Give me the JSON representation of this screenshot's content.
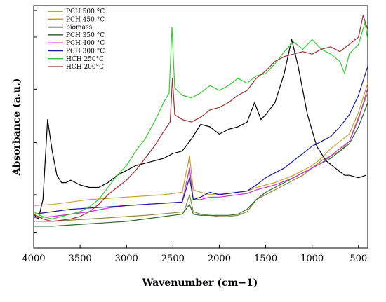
{
  "chart_data": {
    "type": "line",
    "title": "",
    "xlabel": "Wavenumber (cm−1)",
    "ylabel": "Absorbance (a.u.)",
    "xlim": [
      4000,
      400
    ],
    "ylim": [
      0,
      1
    ],
    "x_reversed": true,
    "x_ticks": [
      4000,
      3500,
      3000,
      2500,
      2000,
      1500,
      1000,
      500
    ],
    "y_tick_labels_shown": false,
    "legend_position": "top-left",
    "series": [
      {
        "name": "PCH 500 °C",
        "color": "#8a8a3a",
        "points": [
          [
            4000,
            0.11
          ],
          [
            3800,
            0.11
          ],
          [
            3600,
            0.115
          ],
          [
            3400,
            0.12
          ],
          [
            3200,
            0.125
          ],
          [
            3000,
            0.13
          ],
          [
            2800,
            0.135
          ],
          [
            2500,
            0.145
          ],
          [
            2380,
            0.15
          ],
          [
            2320,
            0.22
          ],
          [
            2280,
            0.15
          ],
          [
            2200,
            0.14
          ],
          [
            2100,
            0.135
          ],
          [
            2000,
            0.13
          ],
          [
            1900,
            0.13
          ],
          [
            1800,
            0.135
          ],
          [
            1700,
            0.15
          ],
          [
            1600,
            0.2
          ],
          [
            1500,
            0.22
          ],
          [
            1400,
            0.24
          ],
          [
            1300,
            0.26
          ],
          [
            1200,
            0.28
          ],
          [
            1100,
            0.3
          ],
          [
            1000,
            0.33
          ],
          [
            900,
            0.36
          ],
          [
            800,
            0.38
          ],
          [
            700,
            0.4
          ],
          [
            600,
            0.44
          ],
          [
            500,
            0.54
          ],
          [
            400,
            0.64
          ]
        ]
      },
      {
        "name": "PCH 450 °C",
        "color": "#c8a030",
        "points": [
          [
            4000,
            0.175
          ],
          [
            3800,
            0.18
          ],
          [
            3600,
            0.19
          ],
          [
            3400,
            0.2
          ],
          [
            3200,
            0.205
          ],
          [
            3000,
            0.21
          ],
          [
            2800,
            0.215
          ],
          [
            2600,
            0.22
          ],
          [
            2400,
            0.23
          ],
          [
            2320,
            0.38
          ],
          [
            2280,
            0.24
          ],
          [
            2200,
            0.23
          ],
          [
            2100,
            0.22
          ],
          [
            2000,
            0.225
          ],
          [
            1900,
            0.225
          ],
          [
            1800,
            0.23
          ],
          [
            1700,
            0.235
          ],
          [
            1600,
            0.25
          ],
          [
            1400,
            0.27
          ],
          [
            1200,
            0.3
          ],
          [
            1000,
            0.34
          ],
          [
            900,
            0.37
          ],
          [
            800,
            0.41
          ],
          [
            700,
            0.44
          ],
          [
            600,
            0.47
          ],
          [
            500,
            0.56
          ],
          [
            400,
            0.68
          ]
        ]
      },
      {
        "name": "biomass",
        "color": "#000000",
        "points": [
          [
            4000,
            0.14
          ],
          [
            3950,
            0.12
          ],
          [
            3900,
            0.2
          ],
          [
            3850,
            0.53
          ],
          [
            3800,
            0.4
          ],
          [
            3750,
            0.3
          ],
          [
            3700,
            0.27
          ],
          [
            3650,
            0.27
          ],
          [
            3600,
            0.28
          ],
          [
            3500,
            0.26
          ],
          [
            3400,
            0.25
          ],
          [
            3300,
            0.25
          ],
          [
            3200,
            0.27
          ],
          [
            3100,
            0.3
          ],
          [
            3000,
            0.32
          ],
          [
            2900,
            0.34
          ],
          [
            2800,
            0.35
          ],
          [
            2700,
            0.36
          ],
          [
            2600,
            0.37
          ],
          [
            2500,
            0.39
          ],
          [
            2400,
            0.4
          ],
          [
            2300,
            0.45
          ],
          [
            2200,
            0.51
          ],
          [
            2100,
            0.5
          ],
          [
            2000,
            0.47
          ],
          [
            1900,
            0.49
          ],
          [
            1800,
            0.5
          ],
          [
            1700,
            0.52
          ],
          [
            1620,
            0.6
          ],
          [
            1550,
            0.53
          ],
          [
            1500,
            0.55
          ],
          [
            1400,
            0.6
          ],
          [
            1300,
            0.72
          ],
          [
            1220,
            0.86
          ],
          [
            1150,
            0.75
          ],
          [
            1050,
            0.55
          ],
          [
            950,
            0.42
          ],
          [
            850,
            0.36
          ],
          [
            750,
            0.33
          ],
          [
            650,
            0.3
          ],
          [
            600,
            0.3
          ],
          [
            500,
            0.29
          ],
          [
            420,
            0.3
          ]
        ]
      },
      {
        "name": "PCH 350 °C",
        "color": "#2a6a2a",
        "points": [
          [
            4000,
            0.09
          ],
          [
            3800,
            0.09
          ],
          [
            3600,
            0.095
          ],
          [
            3400,
            0.1
          ],
          [
            3200,
            0.105
          ],
          [
            3000,
            0.11
          ],
          [
            2800,
            0.12
          ],
          [
            2600,
            0.13
          ],
          [
            2400,
            0.14
          ],
          [
            2320,
            0.18
          ],
          [
            2280,
            0.14
          ],
          [
            2200,
            0.135
          ],
          [
            2100,
            0.135
          ],
          [
            2000,
            0.135
          ],
          [
            1900,
            0.135
          ],
          [
            1800,
            0.14
          ],
          [
            1700,
            0.16
          ],
          [
            1600,
            0.2
          ],
          [
            1500,
            0.23
          ],
          [
            1400,
            0.25
          ],
          [
            1300,
            0.27
          ],
          [
            1200,
            0.29
          ],
          [
            1100,
            0.31
          ],
          [
            1000,
            0.33
          ],
          [
            900,
            0.35
          ],
          [
            800,
            0.37
          ],
          [
            700,
            0.4
          ],
          [
            600,
            0.43
          ],
          [
            500,
            0.5
          ],
          [
            400,
            0.6
          ]
        ]
      },
      {
        "name": "PCH 400 °C",
        "color": "#cc33cc",
        "points": [
          [
            4000,
            0.125
          ],
          [
            3800,
            0.13
          ],
          [
            3600,
            0.14
          ],
          [
            3400,
            0.15
          ],
          [
            3200,
            0.165
          ],
          [
            3000,
            0.175
          ],
          [
            2800,
            0.18
          ],
          [
            2600,
            0.185
          ],
          [
            2400,
            0.19
          ],
          [
            2320,
            0.33
          ],
          [
            2280,
            0.2
          ],
          [
            2200,
            0.2
          ],
          [
            2100,
            0.21
          ],
          [
            2000,
            0.21
          ],
          [
            1900,
            0.215
          ],
          [
            1800,
            0.22
          ],
          [
            1700,
            0.225
          ],
          [
            1600,
            0.24
          ],
          [
            1400,
            0.26
          ],
          [
            1200,
            0.29
          ],
          [
            1000,
            0.33
          ],
          [
            900,
            0.35
          ],
          [
            800,
            0.38
          ],
          [
            700,
            0.41
          ],
          [
            600,
            0.44
          ],
          [
            500,
            0.53
          ],
          [
            400,
            0.66
          ]
        ]
      },
      {
        "name": "PCH 300 °C",
        "color": "#1a1aa0",
        "points": [
          [
            4000,
            0.14
          ],
          [
            3800,
            0.15
          ],
          [
            3600,
            0.16
          ],
          [
            3400,
            0.165
          ],
          [
            3200,
            0.17
          ],
          [
            3000,
            0.175
          ],
          [
            2800,
            0.18
          ],
          [
            2600,
            0.185
          ],
          [
            2400,
            0.19
          ],
          [
            2320,
            0.29
          ],
          [
            2280,
            0.2
          ],
          [
            2200,
            0.21
          ],
          [
            2100,
            0.23
          ],
          [
            2000,
            0.22
          ],
          [
            1900,
            0.225
          ],
          [
            1800,
            0.23
          ],
          [
            1700,
            0.235
          ],
          [
            1600,
            0.26
          ],
          [
            1500,
            0.29
          ],
          [
            1400,
            0.31
          ],
          [
            1300,
            0.33
          ],
          [
            1200,
            0.36
          ],
          [
            1100,
            0.39
          ],
          [
            1000,
            0.42
          ],
          [
            900,
            0.44
          ],
          [
            800,
            0.46
          ],
          [
            700,
            0.5
          ],
          [
            600,
            0.55
          ],
          [
            500,
            0.63
          ],
          [
            400,
            0.75
          ]
        ]
      },
      {
        "name": "HCH 250°C",
        "color": "#33cc33",
        "points": [
          [
            4000,
            0.15
          ],
          [
            3900,
            0.13
          ],
          [
            3800,
            0.12
          ],
          [
            3700,
            0.13
          ],
          [
            3600,
            0.14
          ],
          [
            3500,
            0.15
          ],
          [
            3400,
            0.17
          ],
          [
            3300,
            0.2
          ],
          [
            3200,
            0.25
          ],
          [
            3100,
            0.3
          ],
          [
            3000,
            0.34
          ],
          [
            2900,
            0.4
          ],
          [
            2800,
            0.45
          ],
          [
            2700,
            0.52
          ],
          [
            2600,
            0.6
          ],
          [
            2540,
            0.64
          ],
          [
            2510,
            0.91
          ],
          [
            2480,
            0.66
          ],
          [
            2400,
            0.63
          ],
          [
            2300,
            0.62
          ],
          [
            2200,
            0.64
          ],
          [
            2100,
            0.67
          ],
          [
            2000,
            0.65
          ],
          [
            1900,
            0.67
          ],
          [
            1800,
            0.7
          ],
          [
            1700,
            0.68
          ],
          [
            1600,
            0.71
          ],
          [
            1500,
            0.72
          ],
          [
            1400,
            0.76
          ],
          [
            1300,
            0.81
          ],
          [
            1200,
            0.85
          ],
          [
            1100,
            0.82
          ],
          [
            1000,
            0.86
          ],
          [
            900,
            0.82
          ],
          [
            800,
            0.8
          ],
          [
            700,
            0.77
          ],
          [
            650,
            0.72
          ],
          [
            600,
            0.8
          ],
          [
            500,
            0.84
          ],
          [
            430,
            0.93
          ],
          [
            400,
            0.86
          ]
        ]
      },
      {
        "name": "HCH 200°C",
        "color": "#a03030",
        "points": [
          [
            4000,
            0.14
          ],
          [
            3900,
            0.12
          ],
          [
            3800,
            0.11
          ],
          [
            3700,
            0.115
          ],
          [
            3600,
            0.12
          ],
          [
            3500,
            0.13
          ],
          [
            3400,
            0.15
          ],
          [
            3300,
            0.18
          ],
          [
            3200,
            0.22
          ],
          [
            3100,
            0.25
          ],
          [
            3000,
            0.28
          ],
          [
            2900,
            0.32
          ],
          [
            2800,
            0.37
          ],
          [
            2700,
            0.42
          ],
          [
            2600,
            0.48
          ],
          [
            2530,
            0.52
          ],
          [
            2505,
            0.7
          ],
          [
            2480,
            0.55
          ],
          [
            2400,
            0.53
          ],
          [
            2300,
            0.52
          ],
          [
            2200,
            0.54
          ],
          [
            2100,
            0.57
          ],
          [
            2000,
            0.58
          ],
          [
            1900,
            0.6
          ],
          [
            1800,
            0.63
          ],
          [
            1700,
            0.65
          ],
          [
            1600,
            0.7
          ],
          [
            1500,
            0.73
          ],
          [
            1400,
            0.77
          ],
          [
            1300,
            0.79
          ],
          [
            1200,
            0.8
          ],
          [
            1100,
            0.81
          ],
          [
            1000,
            0.8
          ],
          [
            900,
            0.82
          ],
          [
            800,
            0.83
          ],
          [
            700,
            0.81
          ],
          [
            600,
            0.84
          ],
          [
            500,
            0.87
          ],
          [
            450,
            0.96
          ],
          [
            400,
            0.9
          ]
        ]
      }
    ]
  }
}
